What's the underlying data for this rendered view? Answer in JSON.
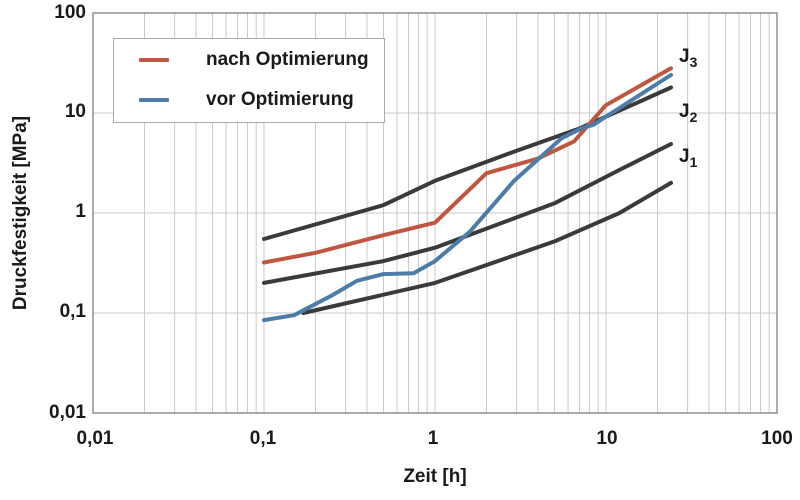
{
  "chart_data": {
    "type": "line",
    "scale": "log-log",
    "x_title": "Zeit [h]",
    "y_title": "Druckfestigkeit [MPa]",
    "x_unit": "h",
    "y_unit": "MPa",
    "x_range": [
      0.01,
      100
    ],
    "y_range": [
      0.01,
      100
    ],
    "x_tick_labels": [
      "0,01",
      "0,1",
      "1",
      "10",
      "100"
    ],
    "y_tick_labels": [
      "100",
      "10",
      "1",
      "0,1",
      "0,01"
    ],
    "grid": {
      "x_minor_lines": true,
      "y_decade_lines_only": true,
      "color": "#c9c9c9",
      "frame_color": "#8f8f8f"
    },
    "series": [
      {
        "name": "J3",
        "label_main": "J",
        "label_sub": "3",
        "color": "#3a3a3a",
        "points": [
          [
            0.1,
            0.55
          ],
          [
            0.5,
            1.2
          ],
          [
            1,
            2.1
          ],
          [
            3,
            4.2
          ],
          [
            7,
            7.0
          ],
          [
            24,
            18
          ]
        ]
      },
      {
        "name": "J2",
        "label_main": "J",
        "label_sub": "2",
        "color": "#3a3a3a",
        "points": [
          [
            0.1,
            0.2
          ],
          [
            0.5,
            0.33
          ],
          [
            1,
            0.45
          ],
          [
            5,
            1.25
          ],
          [
            12,
            2.7
          ],
          [
            24,
            4.9
          ]
        ]
      },
      {
        "name": "J1",
        "label_main": "J",
        "label_sub": "1",
        "color": "#3a3a3a",
        "points": [
          [
            0.17,
            0.1
          ],
          [
            1,
            0.2
          ],
          [
            5,
            0.52
          ],
          [
            12,
            1.0
          ],
          [
            24,
            2.0
          ]
        ]
      },
      {
        "name": "nach Optimierung",
        "color": "#bf5740",
        "points": [
          [
            0.1,
            0.32
          ],
          [
            0.2,
            0.4
          ],
          [
            0.5,
            0.6
          ],
          [
            1,
            0.8
          ],
          [
            2,
            2.5
          ],
          [
            4,
            3.5
          ],
          [
            6.5,
            5.2
          ],
          [
            10,
            12
          ],
          [
            24,
            28
          ]
        ]
      },
      {
        "name": "vor Optimierung",
        "color": "#4d7ca8",
        "points": [
          [
            0.1,
            0.085
          ],
          [
            0.15,
            0.095
          ],
          [
            0.25,
            0.15
          ],
          [
            0.35,
            0.21
          ],
          [
            0.5,
            0.245
          ],
          [
            0.75,
            0.25
          ],
          [
            1,
            0.33
          ],
          [
            1.6,
            0.65
          ],
          [
            2.9,
            2.1
          ],
          [
            5.5,
            5.6
          ],
          [
            7.3,
            7.1
          ],
          [
            8.4,
            7.6
          ],
          [
            24,
            24
          ]
        ]
      }
    ]
  },
  "legend": {
    "items": [
      {
        "label": "nach Optimierung",
        "series_index": 3
      },
      {
        "label": "vor Optimierung",
        "series_index": 4
      }
    ]
  }
}
